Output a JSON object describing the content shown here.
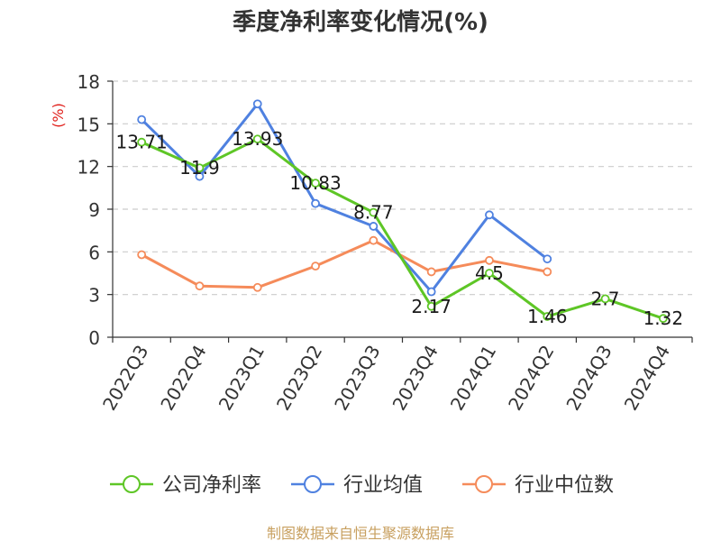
{
  "chart_data": {
    "type": "line",
    "title": "季度净利率变化情况(%)",
    "ylabel": "(%)",
    "xlabel": "",
    "ylim": [
      0,
      18
    ],
    "yticks": [
      0,
      3,
      6,
      9,
      12,
      15,
      18
    ],
    "grid": true,
    "legend_position": "bottom",
    "categories": [
      "2022Q3",
      "2022Q4",
      "2023Q1",
      "2023Q2",
      "2023Q3",
      "2023Q4",
      "2024Q1",
      "2024Q2",
      "2024Q3",
      "2024Q4"
    ],
    "series": [
      {
        "name": "公司净利率",
        "color": "#5ec626",
        "values": [
          13.71,
          11.9,
          13.93,
          10.83,
          8.77,
          2.17,
          4.5,
          1.46,
          2.7,
          1.32
        ],
        "labels": [
          "13.71",
          "11.9",
          "13.93",
          "10.83",
          "8.77",
          "2.17",
          "4.5",
          "1.46",
          "2.7",
          "1.32"
        ]
      },
      {
        "name": "行业均值",
        "color": "#4f81e0",
        "values": [
          15.3,
          11.3,
          16.4,
          9.4,
          7.8,
          3.2,
          8.6,
          5.5,
          null,
          null
        ]
      },
      {
        "name": "行业中位数",
        "color": "#f58b5a",
        "values": [
          5.8,
          3.6,
          3.5,
          5.0,
          6.8,
          4.6,
          5.4,
          4.6,
          null,
          null
        ]
      }
    ]
  },
  "source": "制图数据来自恒生聚源数据库",
  "colors": {
    "axis": "#333333",
    "grid": "#cccccc",
    "ylabel": "#e0201c",
    "source": "#c8a060"
  }
}
